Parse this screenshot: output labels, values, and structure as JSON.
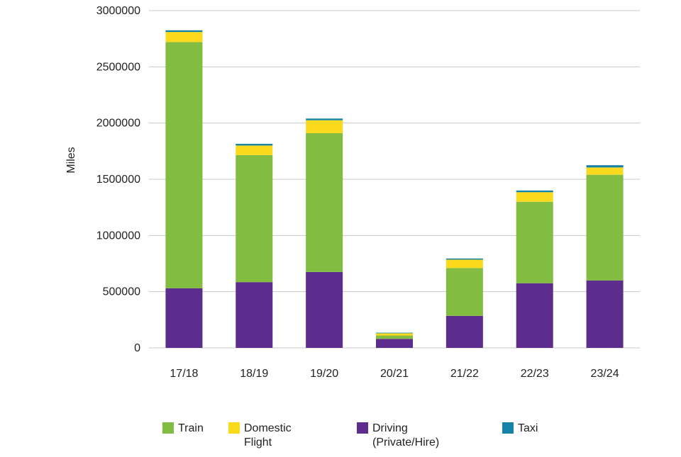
{
  "chart_data": {
    "type": "bar",
    "stacked": true,
    "title": "",
    "xlabel": "",
    "ylabel": "Miles",
    "ylim": [
      0,
      3000000
    ],
    "yticks": [
      "0",
      "500000",
      "1000000",
      "1500000",
      "2000000",
      "2500000",
      "3000000"
    ],
    "grid": true,
    "legend_position": "bottom",
    "categories": [
      "17/18",
      "18/19",
      "19/20",
      "20/21",
      "21/22",
      "22/23",
      "23/24"
    ],
    "series": [
      {
        "name": "Driving (Private/Hire)",
        "legend_lines": [
          "Driving",
          "(Private/Hire)"
        ],
        "color": "#5c2d8c",
        "values": [
          530000,
          585000,
          675000,
          80000,
          285000,
          575000,
          600000
        ]
      },
      {
        "name": "Train",
        "legend_lines": [
          "Train"
        ],
        "color": "#82bc41",
        "values": [
          2190000,
          1130000,
          1235000,
          30000,
          425000,
          725000,
          940000
        ]
      },
      {
        "name": "Domestic Flight",
        "legend_lines": [
          "Domestic",
          "Flight"
        ],
        "color": "#fbd91c",
        "values": [
          90000,
          85000,
          115000,
          20000,
          75000,
          85000,
          65000
        ]
      },
      {
        "name": "Taxi",
        "legend_lines": [
          "Taxi"
        ],
        "color": "#1583a6",
        "values": [
          15000,
          15000,
          15000,
          5000,
          10000,
          15000,
          20000
        ]
      }
    ],
    "legend_order": [
      "Train",
      "Domestic Flight",
      "Driving (Private/Hire)",
      "Taxi"
    ]
  }
}
